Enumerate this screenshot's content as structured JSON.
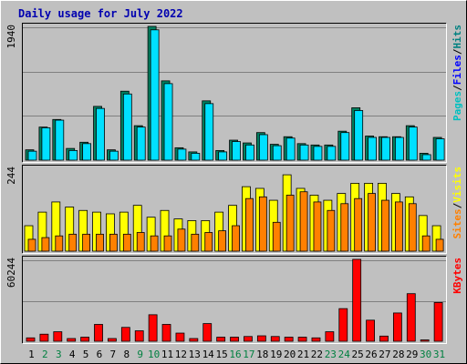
{
  "colors": {
    "background": "#c0c0c0",
    "panel": "#c0c0c0",
    "title": "#0000b0",
    "grid": "#808080",
    "hits": "#00e0ff",
    "files": "#008080",
    "pages": "#00c0c0",
    "visits": "#ffff00",
    "sites": "#ff8000",
    "kbytes": "#ff0000",
    "weekend_label": "#008040",
    "weekday_label": "#000000"
  },
  "chart_data": {
    "type": "bar",
    "title": "Daily usage for July 2022",
    "categories": [
      "1",
      "2",
      "3",
      "4",
      "5",
      "6",
      "7",
      "8",
      "9",
      "10",
      "11",
      "12",
      "13",
      "14",
      "15",
      "16",
      "17",
      "18",
      "19",
      "20",
      "21",
      "22",
      "23",
      "24",
      "25",
      "26",
      "27",
      "28",
      "29",
      "30",
      "31"
    ],
    "weekend_days": [
      2,
      3,
      9,
      10,
      16,
      17,
      23,
      24,
      30,
      31
    ],
    "panels": [
      {
        "name": "hits-files-pages",
        "scale_label": "1940",
        "ymax": 1940,
        "legend": [
          "Pages",
          "/",
          "Files",
          "/",
          "Hits"
        ],
        "legend_colors": [
          "#00c0c0",
          "#000000",
          "#0000ff",
          "#000000",
          "#008080"
        ],
        "series": [
          {
            "name": "Hits",
            "values": [
              150,
              480,
              590,
              170,
              260,
              780,
              150,
              1000,
              500,
              1940,
              1150,
              180,
              120,
              860,
              140,
              290,
              250,
              400,
              230,
              340,
              240,
              220,
              220,
              420,
              760,
              350,
              340,
              340,
              500,
              100,
              330
            ]
          },
          {
            "name": "Files",
            "values": [
              130,
              470,
              580,
              140,
              240,
              750,
              130,
              960,
              480,
              1890,
              1110,
              160,
              100,
              820,
              120,
              270,
              220,
              370,
              210,
              320,
              220,
              200,
              200,
              400,
              720,
              330,
              330,
              330,
              480,
              80,
              310
            ]
          }
        ]
      },
      {
        "name": "visits-sites",
        "scale_label": "244",
        "ymax": 244,
        "legend": [
          "Sites",
          "/",
          "Visits"
        ],
        "legend_colors": [
          "#ff8000",
          "#000000",
          "#ffff00"
        ],
        "series": [
          {
            "name": "Visits",
            "values": [
              75,
              115,
              145,
              130,
              120,
              115,
              110,
              115,
              135,
              100,
              120,
              95,
              90,
              90,
              115,
              135,
              190,
              185,
              150,
              225,
              185,
              165,
              150,
              170,
              200,
              200,
              200,
              170,
              160,
              105,
              75
            ]
          },
          {
            "name": "Sites",
            "values": [
              35,
              40,
              45,
              50,
              50,
              50,
              50,
              50,
              55,
              45,
              45,
              65,
              50,
              55,
              60,
              75,
              155,
              160,
              85,
              165,
              175,
              145,
              120,
              140,
              155,
              170,
              150,
              145,
              140,
              45,
              35
            ]
          }
        ]
      },
      {
        "name": "kbytes",
        "scale_label": "60244",
        "ymax": 60244,
        "legend": [
          "KBytes"
        ],
        "legend_colors": [
          "#ff0000"
        ],
        "series": [
          {
            "name": "KBytes",
            "values": [
              2500,
              5200,
              7000,
              2000,
              3000,
              12400,
              2000,
              10200,
              7700,
              19500,
              12400,
              6000,
              2000,
              13000,
              3000,
              3000,
              3500,
              4000,
              3500,
              3000,
              3000,
              2500,
              7000,
              24000,
              60244,
              15500,
              3800,
              20800,
              35000,
              1000,
              28500
            ]
          }
        ]
      }
    ]
  }
}
